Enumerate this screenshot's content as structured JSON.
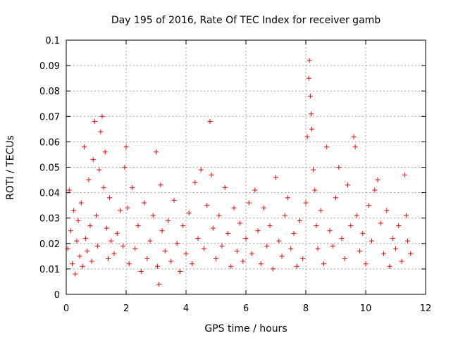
{
  "chart_data": {
    "type": "scatter",
    "title": "Day 195 of 2016, Rate Of TEC Index for receiver gamb",
    "xlabel": "GPS time / hours",
    "ylabel": "ROTI / TECUs",
    "xlim": [
      0,
      12
    ],
    "ylim": [
      0,
      0.1
    ],
    "x_ticks": [
      0,
      2,
      4,
      6,
      8,
      10,
      12
    ],
    "x_tick_labels": [
      "0",
      "2",
      "4",
      "6",
      "8",
      "10",
      "12"
    ],
    "y_ticks": [
      0,
      0.01,
      0.02,
      0.03,
      0.04,
      0.05,
      0.06,
      0.07,
      0.08,
      0.09,
      0.1
    ],
    "y_tick_labels": [
      "0",
      "0.01",
      "0.02",
      "0.03",
      "0.04",
      "0.05",
      "0.06",
      "0.07",
      "0.08",
      "0.09",
      "0.1"
    ],
    "grid": true,
    "marker": "+",
    "color": "#ff0000",
    "series": [
      {
        "name": "ROTI",
        "points": [
          [
            0.05,
            0.018
          ],
          [
            0.1,
            0.041
          ],
          [
            0.15,
            0.025
          ],
          [
            0.2,
            0.012
          ],
          [
            0.25,
            0.033
          ],
          [
            0.3,
            0.008
          ],
          [
            0.35,
            0.021
          ],
          [
            0.4,
            0.029
          ],
          [
            0.45,
            0.015
          ],
          [
            0.5,
            0.036
          ],
          [
            0.55,
            0.011
          ],
          [
            0.6,
            0.058
          ],
          [
            0.65,
            0.022
          ],
          [
            0.7,
            0.017
          ],
          [
            0.75,
            0.045
          ],
          [
            0.8,
            0.027
          ],
          [
            0.85,
            0.013
          ],
          [
            0.9,
            0.053
          ],
          [
            0.95,
            0.068
          ],
          [
            1.0,
            0.031
          ],
          [
            1.05,
            0.019
          ],
          [
            1.1,
            0.049
          ],
          [
            1.15,
            0.064
          ],
          [
            1.2,
            0.07
          ],
          [
            1.25,
            0.042
          ],
          [
            1.3,
            0.056
          ],
          [
            1.35,
            0.026
          ],
          [
            1.4,
            0.014
          ],
          [
            1.45,
            0.038
          ],
          [
            1.5,
            0.021
          ],
          [
            1.6,
            0.016
          ],
          [
            1.7,
            0.024
          ],
          [
            1.8,
            0.033
          ],
          [
            1.9,
            0.019
          ],
          [
            1.95,
            0.05
          ],
          [
            2.0,
            0.058
          ],
          [
            2.05,
            0.034
          ],
          [
            2.1,
            0.012
          ],
          [
            2.2,
            0.042
          ],
          [
            2.3,
            0.018
          ],
          [
            2.4,
            0.027
          ],
          [
            2.5,
            0.009
          ],
          [
            2.6,
            0.036
          ],
          [
            2.7,
            0.014
          ],
          [
            2.8,
            0.021
          ],
          [
            2.9,
            0.031
          ],
          [
            3.0,
            0.056
          ],
          [
            3.05,
            0.011
          ],
          [
            3.1,
            0.004
          ],
          [
            3.15,
            0.043
          ],
          [
            3.2,
            0.025
          ],
          [
            3.3,
            0.017
          ],
          [
            3.4,
            0.029
          ],
          [
            3.5,
            0.013
          ],
          [
            3.6,
            0.037
          ],
          [
            3.7,
            0.02
          ],
          [
            3.8,
            0.009
          ],
          [
            3.9,
            0.027
          ],
          [
            4.0,
            0.016
          ],
          [
            4.1,
            0.032
          ],
          [
            4.2,
            0.012
          ],
          [
            4.3,
            0.044
          ],
          [
            4.4,
            0.022
          ],
          [
            4.5,
            0.049
          ],
          [
            4.6,
            0.018
          ],
          [
            4.7,
            0.035
          ],
          [
            4.8,
            0.068
          ],
          [
            4.85,
            0.047
          ],
          [
            4.9,
            0.026
          ],
          [
            5.0,
            0.014
          ],
          [
            5.1,
            0.031
          ],
          [
            5.2,
            0.019
          ],
          [
            5.3,
            0.042
          ],
          [
            5.4,
            0.024
          ],
          [
            5.5,
            0.011
          ],
          [
            5.6,
            0.034
          ],
          [
            5.7,
            0.017
          ],
          [
            5.8,
            0.028
          ],
          [
            5.9,
            0.013
          ],
          [
            6.0,
            0.022
          ],
          [
            6.1,
            0.036
          ],
          [
            6.2,
            0.016
          ],
          [
            6.3,
            0.041
          ],
          [
            6.4,
            0.025
          ],
          [
            6.5,
            0.012
          ],
          [
            6.6,
            0.034
          ],
          [
            6.7,
            0.019
          ],
          [
            6.8,
            0.027
          ],
          [
            6.9,
            0.01
          ],
          [
            7.0,
            0.046
          ],
          [
            7.1,
            0.021
          ],
          [
            7.2,
            0.015
          ],
          [
            7.3,
            0.031
          ],
          [
            7.4,
            0.038
          ],
          [
            7.5,
            0.018
          ],
          [
            7.6,
            0.024
          ],
          [
            7.7,
            0.011
          ],
          [
            7.8,
            0.029
          ],
          [
            7.9,
            0.014
          ],
          [
            8.0,
            0.036
          ],
          [
            8.05,
            0.062
          ],
          [
            8.1,
            0.085
          ],
          [
            8.12,
            0.092
          ],
          [
            8.15,
            0.078
          ],
          [
            8.18,
            0.071
          ],
          [
            8.2,
            0.065
          ],
          [
            8.25,
            0.049
          ],
          [
            8.3,
            0.041
          ],
          [
            8.35,
            0.027
          ],
          [
            8.4,
            0.018
          ],
          [
            8.5,
            0.033
          ],
          [
            8.6,
            0.012
          ],
          [
            8.7,
            0.058
          ],
          [
            8.8,
            0.025
          ],
          [
            8.9,
            0.019
          ],
          [
            9.0,
            0.038
          ],
          [
            9.1,
            0.05
          ],
          [
            9.2,
            0.022
          ],
          [
            9.3,
            0.014
          ],
          [
            9.4,
            0.043
          ],
          [
            9.5,
            0.027
          ],
          [
            9.6,
            0.062
          ],
          [
            9.65,
            0.058
          ],
          [
            9.7,
            0.031
          ],
          [
            9.8,
            0.017
          ],
          [
            9.9,
            0.024
          ],
          [
            10.0,
            0.012
          ],
          [
            10.1,
            0.035
          ],
          [
            10.2,
            0.021
          ],
          [
            10.3,
            0.041
          ],
          [
            10.4,
            0.045
          ],
          [
            10.5,
            0.028
          ],
          [
            10.6,
            0.016
          ],
          [
            10.7,
            0.033
          ],
          [
            10.8,
            0.011
          ],
          [
            10.9,
            0.022
          ],
          [
            11.0,
            0.018
          ],
          [
            11.1,
            0.027
          ],
          [
            11.2,
            0.013
          ],
          [
            11.3,
            0.047
          ],
          [
            11.35,
            0.031
          ],
          [
            11.4,
            0.021
          ],
          [
            11.5,
            0.016
          ]
        ]
      }
    ]
  }
}
